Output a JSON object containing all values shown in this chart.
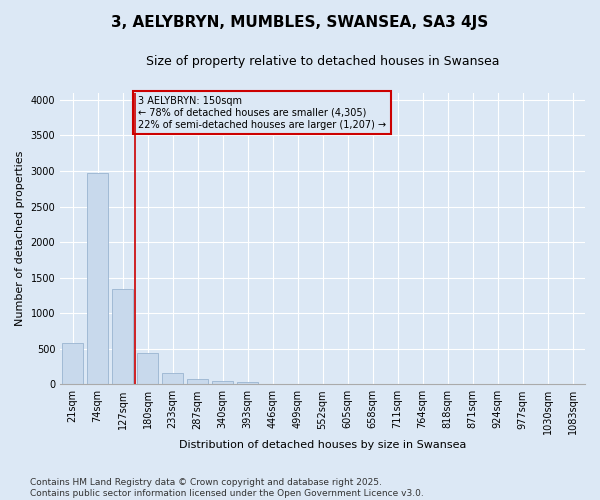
{
  "title": "3, AELYBRYN, MUMBLES, SWANSEA, SA3 4JS",
  "subtitle": "Size of property relative to detached houses in Swansea",
  "xlabel": "Distribution of detached houses by size in Swansea",
  "ylabel": "Number of detached properties",
  "categories": [
    "21sqm",
    "74sqm",
    "127sqm",
    "180sqm",
    "233sqm",
    "287sqm",
    "340sqm",
    "393sqm",
    "446sqm",
    "499sqm",
    "552sqm",
    "605sqm",
    "658sqm",
    "711sqm",
    "764sqm",
    "818sqm",
    "871sqm",
    "924sqm",
    "977sqm",
    "1030sqm",
    "1083sqm"
  ],
  "values": [
    575,
    2970,
    1340,
    440,
    160,
    75,
    40,
    30,
    0,
    0,
    0,
    0,
    0,
    0,
    0,
    0,
    0,
    0,
    0,
    0,
    0
  ],
  "bar_color": "#c8d9ec",
  "bar_edge_color": "#9ab4d0",
  "ylim": [
    0,
    4100
  ],
  "yticks": [
    0,
    500,
    1000,
    1500,
    2000,
    2500,
    3000,
    3500,
    4000
  ],
  "vline_x": 2.5,
  "vline_color": "#cc0000",
  "annotation_text": "3 AELYBRYN: 150sqm\n← 78% of detached houses are smaller (4,305)\n22% of semi-detached houses are larger (1,207) →",
  "annotation_box_edgecolor": "#cc0000",
  "annotation_bg_color": "#dce8f5",
  "background_color": "#dce8f5",
  "grid_color": "#ffffff",
  "footer_line1": "Contains HM Land Registry data © Crown copyright and database right 2025.",
  "footer_line2": "Contains public sector information licensed under the Open Government Licence v3.0.",
  "title_fontsize": 11,
  "subtitle_fontsize": 9,
  "axis_fontsize": 8,
  "tick_fontsize": 7,
  "footer_fontsize": 6.5
}
